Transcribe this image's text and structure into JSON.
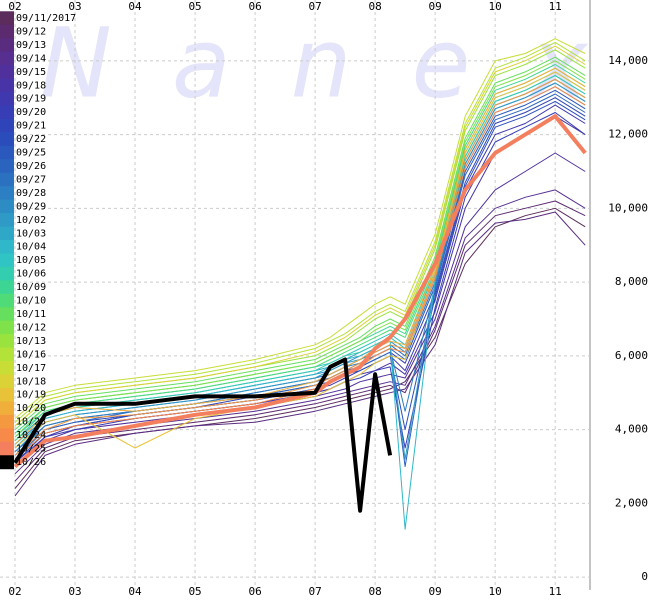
{
  "chart_data": {
    "type": "line",
    "watermark": "Nanex",
    "x": [
      2,
      2.5,
      3,
      4,
      5,
      6,
      7,
      7.25,
      7.5,
      7.75,
      8,
      8.25,
      8.5,
      9,
      9.5,
      10,
      10.5,
      11,
      11.5
    ],
    "xlim": [
      1.75,
      11.58
    ],
    "xticks": [
      {
        "value": 2,
        "label": "02"
      },
      {
        "value": 3,
        "label": "03"
      },
      {
        "value": 4,
        "label": "04"
      },
      {
        "value": 5,
        "label": "05"
      },
      {
        "value": 6,
        "label": "06"
      },
      {
        "value": 7,
        "label": "07"
      },
      {
        "value": 8,
        "label": "08"
      },
      {
        "value": 9,
        "label": "09"
      },
      {
        "value": 10,
        "label": "10"
      },
      {
        "value": 11,
        "label": "11"
      }
    ],
    "ylim": [
      -350,
      15650
    ],
    "yticks": [
      0,
      {
        "value": 2000,
        "label": "2,000"
      },
      {
        "value": 4000,
        "label": "4,000"
      },
      {
        "value": 6000,
        "label": "6,000"
      },
      {
        "value": 8000,
        "label": "8,000"
      },
      {
        "value": 10000,
        "label": "10,000"
      },
      {
        "value": 12000,
        "label": "12,000"
      },
      {
        "value": 14000,
        "label": "14,000"
      }
    ],
    "grid": true,
    "legend": "left",
    "series": [
      {
        "name": "09/11/2017",
        "color": "#5b2c5c",
        "values": [
          2400,
          3400,
          3700,
          3900,
          4100,
          4300,
          4600,
          4700,
          4800,
          4900,
          5000,
          5100,
          5300,
          6500,
          8500,
          9500,
          9800,
          10000,
          9500
        ]
      },
      {
        "name": "09/12",
        "color": "#5c2a6e",
        "values": [
          2600,
          3500,
          3800,
          4000,
          4200,
          4400,
          4700,
          4800,
          4900,
          5000,
          5100,
          5200,
          5000,
          6700,
          9000,
          9800,
          10000,
          10200,
          9800
        ]
      },
      {
        "name": "09/13",
        "color": "#5a2c80",
        "values": [
          2200,
          3300,
          3600,
          3900,
          4100,
          4200,
          4500,
          4600,
          4700,
          4800,
          4900,
          5000,
          5100,
          6300,
          8800,
          9600,
          9700,
          9900,
          9000
        ]
      },
      {
        "name": "09/14",
        "color": "#562f90",
        "values": [
          2800,
          3600,
          3900,
          4100,
          4300,
          4500,
          4800,
          4900,
          5000,
          5100,
          5200,
          5300,
          5200,
          6800,
          9200,
          10000,
          10300,
          10500,
          10000
        ]
      },
      {
        "name": "09/15",
        "color": "#50309c",
        "values": [
          3000,
          3700,
          4000,
          4200,
          4400,
          4600,
          4900,
          5000,
          5100,
          5300,
          5400,
          5500,
          5400,
          7000,
          9500,
          10500,
          11000,
          11500,
          11000
        ]
      },
      {
        "name": "09/18",
        "color": "#4834a6",
        "values": [
          3100,
          3800,
          4100,
          4300,
          4500,
          4700,
          5000,
          5100,
          5300,
          5500,
          5600,
          5800,
          5500,
          7200,
          10000,
          11500,
          12000,
          12500,
          12000
        ]
      },
      {
        "name": "09/19",
        "color": "#3f38ae",
        "values": [
          3200,
          3900,
          4100,
          4400,
          4600,
          4800,
          5100,
          5200,
          5400,
          5600,
          5800,
          6000,
          5600,
          7500,
          10500,
          12000,
          12300,
          12800,
          12300
        ]
      },
      {
        "name": "09/20",
        "color": "#373db4",
        "values": [
          3000,
          3800,
          4000,
          4300,
          4500,
          4700,
          5000,
          5100,
          5300,
          5400,
          5600,
          5700,
          3500,
          7300,
          10300,
          11800,
          12200,
          12600,
          12000
        ]
      },
      {
        "name": "09/21",
        "color": "#2f44b8",
        "values": [
          3300,
          4000,
          4200,
          4400,
          4600,
          4900,
          5200,
          5300,
          5500,
          5700,
          5900,
          6100,
          5800,
          7700,
          10700,
          12300,
          12600,
          13000,
          12500
        ]
      },
      {
        "name": "09/22",
        "color": "#2a4dbb",
        "values": [
          3100,
          3900,
          4100,
          4400,
          4600,
          4800,
          5100,
          5300,
          5500,
          5600,
          5800,
          6000,
          4000,
          7600,
          10600,
          12200,
          12500,
          12900,
          12400
        ]
      },
      {
        "name": "09/25",
        "color": "#2a58bd",
        "values": [
          3400,
          4100,
          4300,
          4500,
          4700,
          5000,
          5300,
          5400,
          5600,
          5800,
          6000,
          6200,
          5900,
          7900,
          11000,
          12500,
          12800,
          13200,
          12700
        ]
      },
      {
        "name": "09/26",
        "color": "#2a64bf",
        "values": [
          3200,
          4000,
          4200,
          4500,
          4700,
          4900,
          5200,
          5400,
          5600,
          5700,
          5900,
          6100,
          3000,
          7800,
          10900,
          12400,
          12700,
          13100,
          12600
        ]
      },
      {
        "name": "09/27",
        "color": "#2b71c0",
        "values": [
          3500,
          4200,
          4400,
          4600,
          4800,
          5100,
          5400,
          5500,
          5700,
          5900,
          6100,
          6300,
          6000,
          8000,
          11200,
          12700,
          13000,
          13400,
          12900
        ]
      },
      {
        "name": "09/28",
        "color": "#2c7fc2",
        "values": [
          3300,
          4100,
          4300,
          4500,
          4700,
          5000,
          5300,
          5500,
          5700,
          5800,
          6000,
          6200,
          4500,
          7900,
          11100,
          12600,
          12900,
          13300,
          12800
        ]
      },
      {
        "name": "09/29",
        "color": "#2d8cc4",
        "values": [
          3600,
          4300,
          4500,
          4700,
          4900,
          5200,
          5500,
          5600,
          5800,
          6000,
          6200,
          6400,
          6100,
          8100,
          11300,
          12800,
          13100,
          13500,
          13000
        ]
      },
      {
        "name": "10/02",
        "color": "#2f9ac6",
        "values": [
          3400,
          4200,
          4400,
          4600,
          4800,
          5100,
          5400,
          5600,
          5800,
          5900,
          6100,
          6300,
          3200,
          8000,
          11200,
          12700,
          13000,
          13400,
          12900
        ]
      },
      {
        "name": "10/03",
        "color": "#2fa8c8",
        "values": [
          3700,
          4400,
          4600,
          4800,
          5000,
          5300,
          5600,
          5700,
          5900,
          6100,
          6300,
          6500,
          6200,
          8200,
          11400,
          12900,
          13200,
          13600,
          13100
        ]
      },
      {
        "name": "10/04",
        "color": "#30b7c9",
        "values": [
          3500,
          4300,
          4500,
          4700,
          4900,
          5200,
          5500,
          5700,
          5900,
          6000,
          6200,
          6400,
          1300,
          8100,
          11300,
          12800,
          13100,
          13500,
          13000
        ]
      },
      {
        "name": "10/05",
        "color": "#31c4c4",
        "values": [
          3800,
          4500,
          4700,
          4900,
          5100,
          5400,
          5700,
          5800,
          6000,
          6200,
          6400,
          6600,
          6300,
          8300,
          11500,
          13000,
          13300,
          13700,
          13200
        ]
      },
      {
        "name": "10/06",
        "color": "#33cdb0",
        "values": [
          3600,
          4400,
          4600,
          4800,
          5000,
          5300,
          5600,
          5800,
          6000,
          6100,
          6300,
          6500,
          6200,
          8200,
          11400,
          12900,
          13200,
          13600,
          13100
        ]
      },
      {
        "name": "10/09",
        "color": "#3cd594",
        "values": [
          3900,
          4600,
          4800,
          5000,
          5200,
          5500,
          5800,
          6000,
          6200,
          6400,
          6600,
          6800,
          6600,
          8500,
          11700,
          13200,
          13500,
          13900,
          13400
        ]
      },
      {
        "name": "10/10",
        "color": "#4fdb78",
        "values": [
          3700,
          4500,
          4700,
          4900,
          5100,
          5400,
          5700,
          5900,
          6100,
          6300,
          6500,
          6700,
          6500,
          8400,
          11600,
          13100,
          13400,
          13800,
          13300
        ]
      },
      {
        "name": "10/11",
        "color": "#66df5e",
        "values": [
          4000,
          4700,
          4900,
          5100,
          5300,
          5600,
          5900,
          6100,
          6300,
          6500,
          6800,
          7000,
          6800,
          8700,
          11900,
          13400,
          13700,
          14100,
          13600
        ]
      },
      {
        "name": "10/12",
        "color": "#80e24a",
        "values": [
          3800,
          4600,
          4800,
          5000,
          5200,
          5500,
          5800,
          6000,
          6200,
          6400,
          6700,
          6900,
          6700,
          8600,
          11800,
          13300,
          13600,
          14000,
          13500
        ]
      },
      {
        "name": "10/13",
        "color": "#9ae33e",
        "values": [
          4100,
          4800,
          5000,
          5200,
          5400,
          5700,
          6000,
          6200,
          6400,
          6700,
          7000,
          7200,
          7000,
          8900,
          12100,
          13600,
          13900,
          14300,
          13800
        ]
      },
      {
        "name": "10/16",
        "color": "#b3e239",
        "values": [
          4200,
          4900,
          5100,
          5300,
          5500,
          5800,
          6200,
          6400,
          6600,
          6900,
          7200,
          7400,
          7200,
          9100,
          12300,
          13800,
          14100,
          14500,
          14000
        ]
      },
      {
        "name": "10/17",
        "color": "#c8dd36",
        "values": [
          4300,
          5000,
          5200,
          5400,
          5600,
          5900,
          6300,
          6500,
          6800,
          7100,
          7400,
          7600,
          7400,
          9300,
          12500,
          14000,
          14200,
          14600,
          14200
        ]
      },
      {
        "name": "10/18",
        "color": "#dad236",
        "values": [
          4100,
          4800,
          5000,
          5200,
          5400,
          5700,
          6100,
          6300,
          6500,
          6800,
          7100,
          7300,
          7100,
          9000,
          12200,
          13700,
          14000,
          14400,
          13900
        ]
      },
      {
        "name": "10/19",
        "color": "#e8c238",
        "values": [
          3500,
          4200,
          4400,
          3500,
          4300,
          4600,
          4900,
          5100,
          5300,
          5500,
          5800,
          6000,
          5900,
          8300,
          11500,
          13000,
          13300,
          13700,
          13200
        ]
      },
      {
        "name": "10/20",
        "color": "#f0ae3b",
        "values": [
          3600,
          4400,
          4600,
          4500,
          4700,
          4900,
          5300,
          5500,
          5700,
          5900,
          6200,
          6400,
          6300,
          8400,
          11600,
          13100,
          13400,
          13800,
          13300
        ]
      },
      {
        "name": "10/23",
        "color": "#f59940",
        "values": [
          3300,
          4000,
          4300,
          4400,
          4600,
          4800,
          5200,
          5400,
          5600,
          5800,
          6100,
          6300,
          6200,
          8200,
          11300,
          12800,
          13100,
          13500,
          13000
        ]
      },
      {
        "name": "10/24",
        "color": "#f78a48",
        "values": [
          3200,
          3900,
          4100,
          4300,
          4500,
          4700,
          5100,
          5300,
          5500,
          5700,
          6000,
          6200,
          6100,
          8100,
          11100,
          12600,
          12900,
          13300,
          12800
        ]
      },
      {
        "name": "10/25",
        "color": "#f47f5f",
        "values": [
          3000,
          3700,
          3800,
          4100,
          4400,
          4600,
          5000,
          5300,
          5500,
          5700,
          6200,
          6500,
          7000,
          8500,
          10500,
          11500,
          12000,
          12500,
          11500
        ]
      },
      {
        "name": "10/26",
        "color": "#000000",
        "values": [
          3100,
          4400,
          4700,
          4700,
          4900,
          4900,
          5000,
          5700,
          5900,
          1800,
          5500,
          3300,
          null,
          null,
          null,
          null,
          null,
          null,
          null
        ]
      }
    ]
  }
}
